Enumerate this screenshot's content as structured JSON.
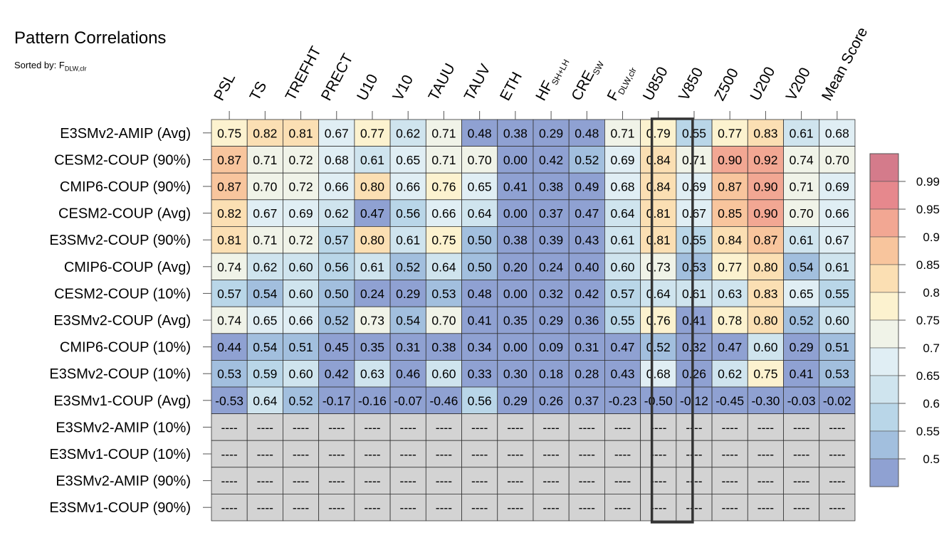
{
  "title": "Pattern Correlations",
  "subtitle": {
    "text": "Sorted by: F",
    "sub": "DLW,clr"
  },
  "chart_data": {
    "type": "heatmap",
    "columns": [
      {
        "label": "PSL"
      },
      {
        "label": "TS"
      },
      {
        "label": "TREFHT"
      },
      {
        "label": "PRECT"
      },
      {
        "label": "U10"
      },
      {
        "label": "V10"
      },
      {
        "label": "TAUU"
      },
      {
        "label": "TAUV"
      },
      {
        "label": "ETH"
      },
      {
        "label": "HF",
        "sub": "SH+LH"
      },
      {
        "label": "CRE",
        "sub": "SW"
      },
      {
        "label": "F",
        "sub": "DLW,clr"
      },
      {
        "label": "U850"
      },
      {
        "label": "V850"
      },
      {
        "label": "Z500"
      },
      {
        "label": "U200"
      },
      {
        "label": "V200"
      },
      {
        "label": "Mean Score"
      }
    ],
    "rows": [
      "E3SMv2-AMIP (Avg)",
      "CESM2-COUP (90%)",
      "CMIP6-COUP (90%)",
      "CESM2-COUP (Avg)",
      "E3SMv2-COUP (90%)",
      "CMIP6-COUP (Avg)",
      "CESM2-COUP (10%)",
      "E3SMv2-COUP (Avg)",
      "CMIP6-COUP (10%)",
      "E3SMv2-COUP (10%)",
      "E3SMv1-COUP (Avg)",
      "E3SMv2-AMIP (10%)",
      "E3SMv1-COUP (10%)",
      "E3SMv2-AMIP (90%)",
      "E3SMv1-COUP (90%)"
    ],
    "values": [
      [
        "0.75",
        "0.82",
        "0.81",
        "0.67",
        "0.77",
        "0.62",
        "0.71",
        "0.48",
        "0.38",
        "0.29",
        "0.48",
        "0.71",
        "0.79",
        "0.55",
        "0.77",
        "0.83",
        "0.61",
        "0.68"
      ],
      [
        "0.87",
        "0.71",
        "0.72",
        "0.68",
        "0.61",
        "0.65",
        "0.71",
        "0.70",
        "0.00",
        "0.42",
        "0.52",
        "0.69",
        "0.84",
        "0.71",
        "0.90",
        "0.92",
        "0.74",
        "0.70"
      ],
      [
        "0.87",
        "0.70",
        "0.72",
        "0.66",
        "0.80",
        "0.66",
        "0.76",
        "0.65",
        "0.41",
        "0.38",
        "0.49",
        "0.68",
        "0.84",
        "0.69",
        "0.87",
        "0.90",
        "0.71",
        "0.69"
      ],
      [
        "0.82",
        "0.67",
        "0.69",
        "0.62",
        "0.47",
        "0.56",
        "0.66",
        "0.64",
        "0.00",
        "0.37",
        "0.47",
        "0.64",
        "0.81",
        "0.67",
        "0.85",
        "0.90",
        "0.70",
        "0.66"
      ],
      [
        "0.81",
        "0.71",
        "0.72",
        "0.57",
        "0.80",
        "0.61",
        "0.75",
        "0.50",
        "0.38",
        "0.39",
        "0.43",
        "0.61",
        "0.81",
        "0.55",
        "0.84",
        "0.87",
        "0.61",
        "0.67"
      ],
      [
        "0.74",
        "0.62",
        "0.60",
        "0.56",
        "0.61",
        "0.52",
        "0.64",
        "0.50",
        "0.20",
        "0.24",
        "0.40",
        "0.60",
        "0.73",
        "0.53",
        "0.77",
        "0.80",
        "0.54",
        "0.61"
      ],
      [
        "0.57",
        "0.54",
        "0.60",
        "0.50",
        "0.24",
        "0.29",
        "0.53",
        "0.48",
        "0.00",
        "0.32",
        "0.42",
        "0.57",
        "0.64",
        "0.61",
        "0.63",
        "0.83",
        "0.65",
        "0.55"
      ],
      [
        "0.74",
        "0.65",
        "0.66",
        "0.52",
        "0.73",
        "0.54",
        "0.70",
        "0.41",
        "0.35",
        "0.29",
        "0.36",
        "0.55",
        "0.76",
        "0.41",
        "0.78",
        "0.80",
        "0.52",
        "0.60"
      ],
      [
        "0.44",
        "0.54",
        "0.51",
        "0.45",
        "0.35",
        "0.31",
        "0.38",
        "0.34",
        "0.00",
        "0.09",
        "0.31",
        "0.47",
        "0.52",
        "0.32",
        "0.47",
        "0.60",
        "0.29",
        "0.51"
      ],
      [
        "0.53",
        "0.59",
        "0.60",
        "0.42",
        "0.63",
        "0.46",
        "0.60",
        "0.33",
        "0.30",
        "0.18",
        "0.28",
        "0.43",
        "0.68",
        "0.26",
        "0.62",
        "0.75",
        "0.41",
        "0.53"
      ],
      [
        "-0.53",
        "0.64",
        "0.52",
        "-0.17",
        "-0.16",
        "-0.07",
        "-0.46",
        "0.56",
        "0.29",
        "0.26",
        "0.37",
        "-0.23",
        "-0.50",
        "-0.12",
        "-0.45",
        "-0.30",
        "-0.03",
        "-0.02"
      ],
      [
        "----",
        "----",
        "----",
        "----",
        "----",
        "----",
        "----",
        "----",
        "----",
        "----",
        "----",
        "----",
        "----",
        "----",
        "----",
        "----",
        "----",
        "----"
      ],
      [
        "----",
        "----",
        "----",
        "----",
        "----",
        "----",
        "----",
        "----",
        "----",
        "----",
        "----",
        "----",
        "----",
        "----",
        "----",
        "----",
        "----",
        "----"
      ],
      [
        "----",
        "----",
        "----",
        "----",
        "----",
        "----",
        "----",
        "----",
        "----",
        "----",
        "----",
        "----",
        "----",
        "----",
        "----",
        "----",
        "----",
        "----"
      ],
      [
        "----",
        "----",
        "----",
        "----",
        "----",
        "----",
        "----",
        "----",
        "----",
        "----",
        "----",
        "----",
        "----",
        "----",
        "----",
        "----",
        "----",
        "----"
      ]
    ],
    "missing_color": "#d3d3d3",
    "highlight_column": "U850",
    "colorbar": {
      "levels": [
        "0.99",
        "0.95",
        "0.9",
        "0.85",
        "0.8",
        "0.75",
        "0.7",
        "0.65",
        "0.6",
        "0.55",
        "0.5"
      ],
      "bins": [
        {
          "min": 0.99,
          "color": "#d47b8b"
        },
        {
          "min": 0.95,
          "color": "#e6888d"
        },
        {
          "min": 0.9,
          "color": "#f2a793"
        },
        {
          "min": 0.85,
          "color": "#f8c59d"
        },
        {
          "min": 0.8,
          "color": "#fbdfb3"
        },
        {
          "min": 0.75,
          "color": "#fcf2cf"
        },
        {
          "min": 0.7,
          "color": "#f0f3e8"
        },
        {
          "min": 0.65,
          "color": "#e0eef4"
        },
        {
          "min": 0.6,
          "color": "#cfe4ee"
        },
        {
          "min": 0.55,
          "color": "#b9d6e8"
        },
        {
          "min": 0.5,
          "color": "#a2bfde"
        },
        {
          "min": -9,
          "color": "#8fa1d2"
        }
      ]
    }
  }
}
